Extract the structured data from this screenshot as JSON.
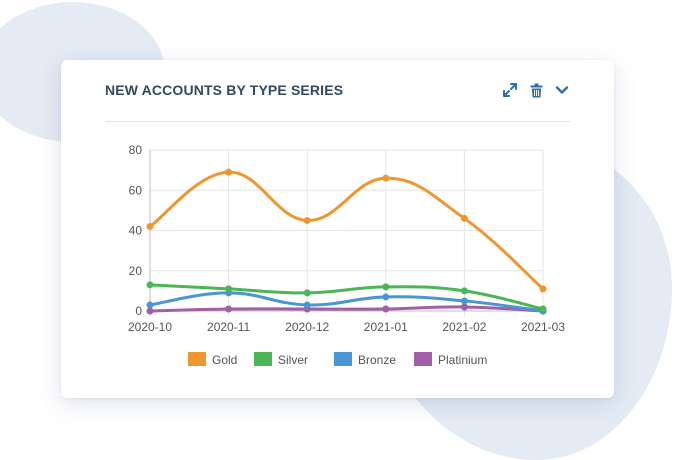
{
  "card": {
    "title": "NEW ACCOUNTS BY TYPE SERIES",
    "icons": {
      "expand": "expand-icon",
      "delete": "trash-icon",
      "collapse": "chevron-down-icon"
    },
    "accent": "#2d6fa6"
  },
  "chart_data": {
    "type": "line",
    "title": "",
    "xlabel": "",
    "ylabel": "",
    "categories": [
      "2020-10",
      "2020-11",
      "2020-12",
      "2021-01",
      "2021-02",
      "2021-03"
    ],
    "ylim": [
      0,
      80
    ],
    "yticks": [
      0,
      20,
      40,
      60,
      80
    ],
    "grid": true,
    "legend": "bottom",
    "series": [
      {
        "name": "Gold",
        "color": "#f0962f",
        "values": [
          42,
          69,
          45,
          66,
          46,
          11
        ]
      },
      {
        "name": "Silver",
        "color": "#4cb556",
        "values": [
          13,
          11,
          9,
          12,
          10,
          1
        ]
      },
      {
        "name": "Bronze",
        "color": "#4a96d2",
        "values": [
          3,
          9,
          3,
          7,
          5,
          0
        ]
      },
      {
        "name": "Platinium",
        "color": "#a25ea9",
        "values": [
          0,
          1,
          1,
          1,
          2,
          0
        ]
      }
    ]
  }
}
